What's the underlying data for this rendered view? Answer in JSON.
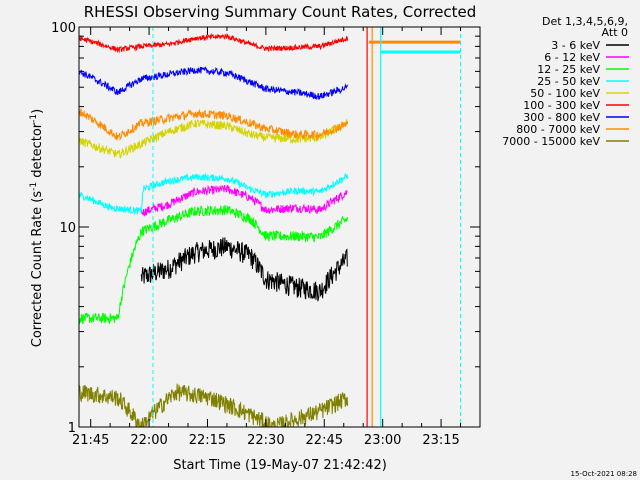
{
  "chart_data": {
    "type": "line",
    "title": "RHESSI Observing Summary Count Rates, Corrected",
    "xlabel": "Start Time (19-May-07 21:42:42)",
    "ylabel_main": "Corrected Count Rate (s",
    "ylabel_sup1": "-1",
    "ylabel_mid": " detector",
    "ylabel_sup2": "-1",
    "ylabel_end": ")",
    "y_scale": "log",
    "ylim": [
      1,
      100
    ],
    "xlim_minutes": [
      1302,
      1405
    ],
    "x_ticks": [
      {
        "m": 1305,
        "label": "21:45"
      },
      {
        "m": 1320,
        "label": "22:00"
      },
      {
        "m": 1335,
        "label": "22:15"
      },
      {
        "m": 1350,
        "label": "22:30"
      },
      {
        "m": 1365,
        "label": "22:45"
      },
      {
        "m": 1380,
        "label": "23:00"
      },
      {
        "m": 1395,
        "label": "23:15"
      }
    ],
    "y_ticks": [
      {
        "v": 1,
        "label": "1"
      },
      {
        "v": 10,
        "label": "10"
      },
      {
        "v": 100,
        "label": "100"
      }
    ],
    "legend_header": [
      "Det 1,3,4,5,6,9,",
      "Att 0"
    ],
    "legend_placement": "right",
    "series": [
      {
        "name": "3 - 6 keV",
        "color": "#000000",
        "noise": 0.12,
        "points": [
          [
            1318,
            5.6
          ],
          [
            1325,
            6.2
          ],
          [
            1332,
            7.5
          ],
          [
            1340,
            8.0
          ],
          [
            1346,
            7.2
          ],
          [
            1350,
            5.5
          ],
          [
            1358,
            5.0
          ],
          [
            1364,
            4.8
          ],
          [
            1371,
            7.0
          ]
        ]
      },
      {
        "name": "6 - 12 keV",
        "color": "#ff00ff",
        "noise": 0.05,
        "points": [
          [
            1318,
            11.8
          ],
          [
            1325,
            13.0
          ],
          [
            1332,
            15.0
          ],
          [
            1340,
            15.5
          ],
          [
            1346,
            14.0
          ],
          [
            1350,
            12.2
          ],
          [
            1358,
            12.5
          ],
          [
            1364,
            12.2
          ],
          [
            1371,
            15.0
          ]
        ]
      },
      {
        "name": "12 - 25 keV",
        "color": "#00ff00",
        "noise": 0.06,
        "points": [
          [
            1302,
            3.5
          ],
          [
            1312,
            3.5
          ],
          [
            1318,
            9.5
          ],
          [
            1325,
            10.8
          ],
          [
            1332,
            12.0
          ],
          [
            1340,
            12.2
          ],
          [
            1346,
            11.0
          ],
          [
            1350,
            9.0
          ],
          [
            1358,
            9.0
          ],
          [
            1364,
            8.9
          ],
          [
            1371,
            11.0
          ]
        ]
      },
      {
        "name": "25 - 50 keV",
        "color": "#00ffff",
        "noise": 0.04,
        "points": [
          [
            1302,
            14.5
          ],
          [
            1310,
            12.5
          ],
          [
            1318,
            12.0
          ],
          [
            1318.5,
            15.5
          ],
          [
            1325,
            17.0
          ],
          [
            1332,
            17.8
          ],
          [
            1340,
            17.5
          ],
          [
            1346,
            15.5
          ],
          [
            1350,
            14.5
          ],
          [
            1358,
            15.2
          ],
          [
            1364,
            15.0
          ],
          [
            1371,
            18.0
          ]
        ]
      },
      {
        "name": "50 - 100 keV",
        "color": "#d4d400",
        "noise": 0.05,
        "points": [
          [
            1302,
            27.0
          ],
          [
            1312,
            23.0
          ],
          [
            1318,
            26.0
          ],
          [
            1325,
            30.0
          ],
          [
            1332,
            33.0
          ],
          [
            1340,
            32.0
          ],
          [
            1346,
            29.0
          ],
          [
            1350,
            28.0
          ],
          [
            1358,
            27.5
          ],
          [
            1364,
            28.0
          ],
          [
            1371,
            33.0
          ]
        ]
      },
      {
        "name": "100 - 300 keV",
        "color": "#ff0000",
        "noise": 0.03,
        "points": [
          [
            1302,
            88.0
          ],
          [
            1312,
            77.0
          ],
          [
            1318,
            80.0
          ],
          [
            1325,
            82.0
          ],
          [
            1332,
            88.0
          ],
          [
            1340,
            90.0
          ],
          [
            1346,
            82.0
          ],
          [
            1350,
            78.0
          ],
          [
            1358,
            79.0
          ],
          [
            1364,
            80.0
          ],
          [
            1371,
            88.0
          ]
        ]
      },
      {
        "name": "300 - 800 keV",
        "color": "#0000ff",
        "noise": 0.04,
        "points": [
          [
            1302,
            60.0
          ],
          [
            1312,
            47.0
          ],
          [
            1318,
            55.0
          ],
          [
            1325,
            58.0
          ],
          [
            1332,
            61.0
          ],
          [
            1340,
            59.0
          ],
          [
            1346,
            53.0
          ],
          [
            1350,
            49.0
          ],
          [
            1358,
            47.0
          ],
          [
            1364,
            45.0
          ],
          [
            1371,
            50.0
          ]
        ]
      },
      {
        "name": "800 - 7000 keV",
        "color": "#ff8c00",
        "noise": 0.05,
        "points": [
          [
            1302,
            38.0
          ],
          [
            1312,
            28.0
          ],
          [
            1318,
            33.0
          ],
          [
            1325,
            35.0
          ],
          [
            1332,
            37.0
          ],
          [
            1340,
            36.0
          ],
          [
            1346,
            33.0
          ],
          [
            1350,
            31.0
          ],
          [
            1358,
            29.0
          ],
          [
            1364,
            29.0
          ],
          [
            1371,
            33.0
          ]
        ]
      },
      {
        "name": "7000 - 15000 keV",
        "color": "#808000",
        "noise": 0.1,
        "points": [
          [
            1302,
            1.5
          ],
          [
            1312,
            1.4
          ],
          [
            1318,
            1.0
          ],
          [
            1327,
            1.5
          ],
          [
            1336,
            1.4
          ],
          [
            1344,
            1.2
          ],
          [
            1352,
            1.0
          ],
          [
            1364,
            1.2
          ],
          [
            1371,
            1.4
          ]
        ]
      }
    ],
    "overlays": [
      {
        "label": "saa-flat-orange",
        "color": "#ff8c00",
        "type": "flat",
        "x0": 1376.5,
        "x1": 1400,
        "y": 84
      },
      {
        "label": "saa-flat-cyan",
        "color": "#00ffff",
        "type": "flat",
        "x0": 1379.5,
        "x1": 1400,
        "y": 75
      },
      {
        "label": "flag-line-cyan-1",
        "color": "#00ffff",
        "type": "dashed-vline",
        "x": 1321
      },
      {
        "label": "flag-line-cyan-2",
        "color": "#00ffff",
        "type": "dashed-vline",
        "x": 1400
      },
      {
        "label": "flag-line-red",
        "color": "#ff0000",
        "type": "vline",
        "x": 1376
      },
      {
        "label": "flag-line-orange",
        "color": "#ff8c00",
        "type": "vline",
        "x": 1377.3
      },
      {
        "label": "flag-line-cyan-3",
        "color": "#00ffff",
        "type": "vline",
        "x": 1379.5
      }
    ],
    "timestamp": "15-Oct-2021 08:28"
  }
}
